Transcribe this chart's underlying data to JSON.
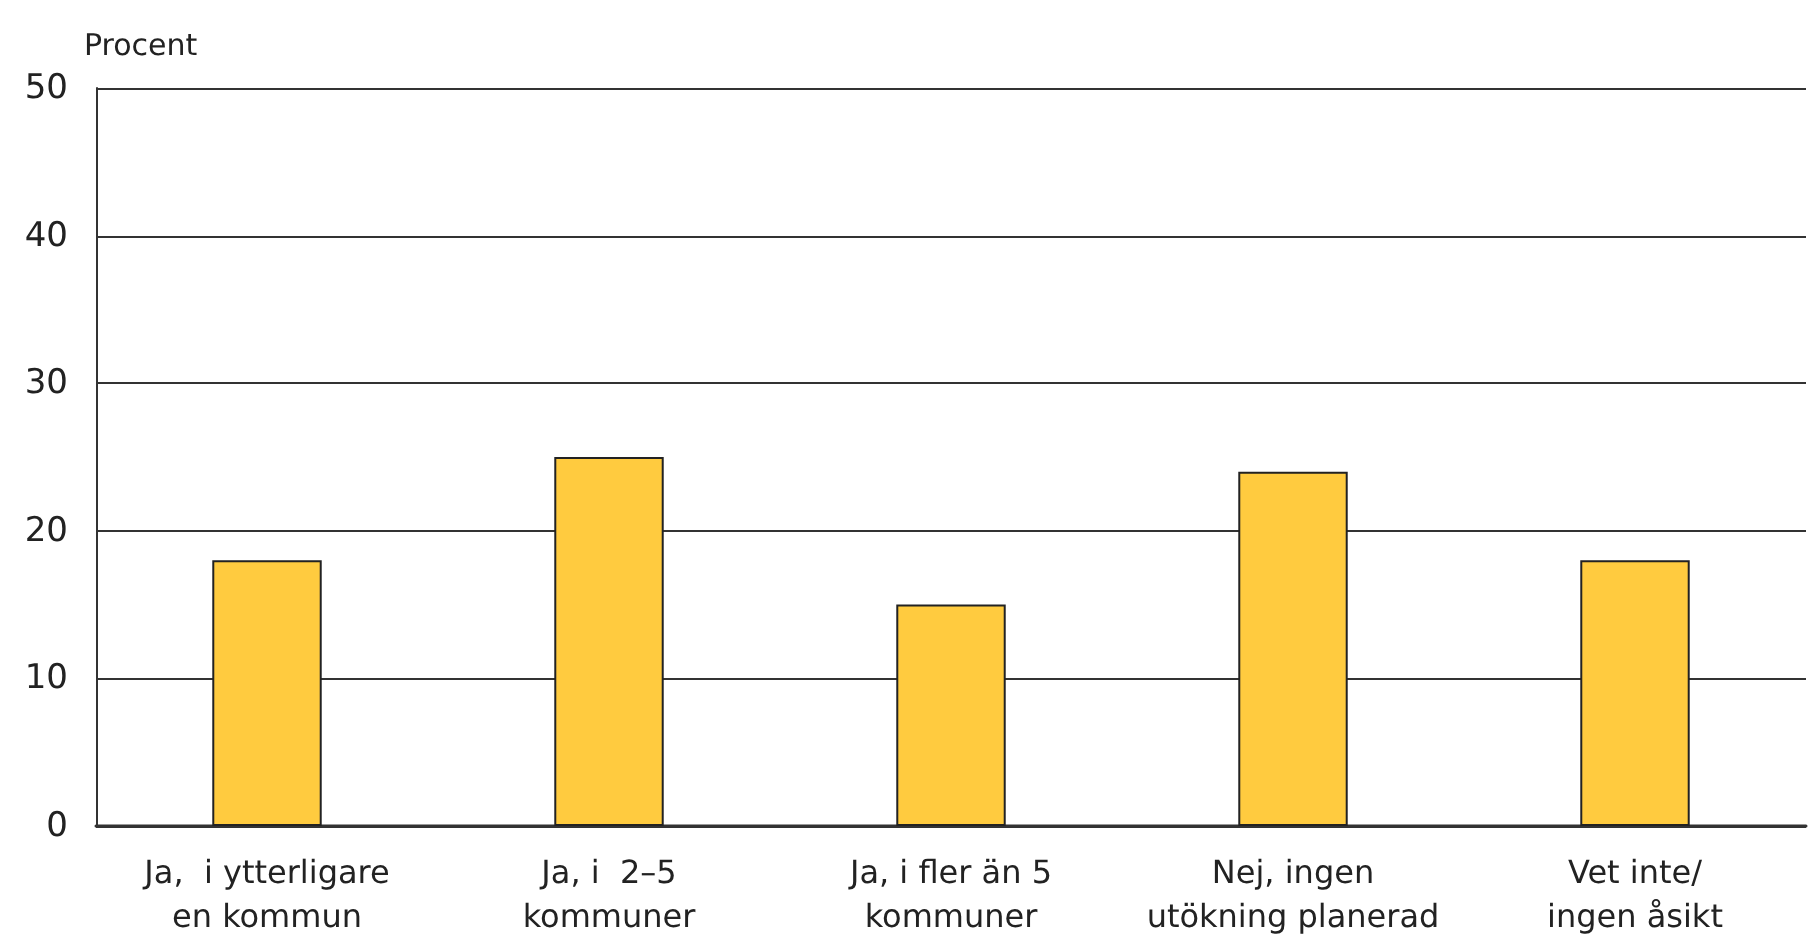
{
  "chart_data": {
    "type": "bar",
    "ylabel": "Procent",
    "categories": [
      "Ja,  i ytterligare\nen kommun",
      "Ja, i  2–5\nkommuner",
      "Ja, i fler än 5\nkommuner",
      "Nej, ingen\nutökning planerad",
      "Vet inte/\ningen åsikt"
    ],
    "values": [
      18,
      25,
      15,
      24,
      18
    ],
    "color": "#ffcb3f",
    "ylim": [
      0,
      50
    ],
    "yticks": [
      0,
      10,
      20,
      30,
      40,
      50
    ],
    "grid": "y"
  }
}
